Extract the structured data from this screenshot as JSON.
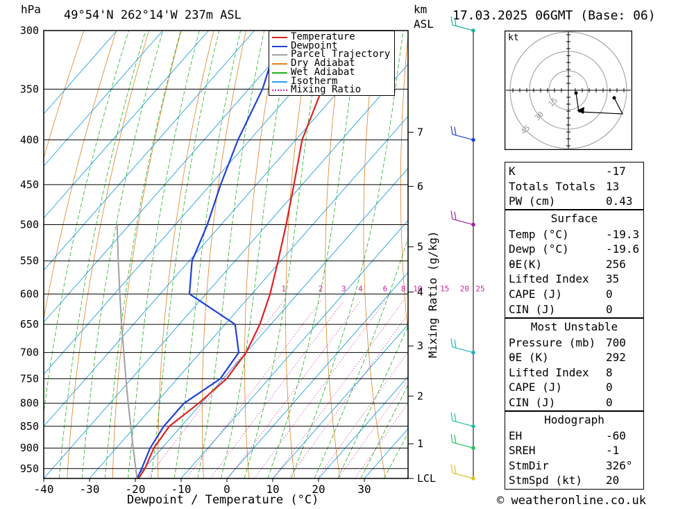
{
  "header": {
    "pressure_unit": "hPa",
    "location": "49°54'N  262°14'W  237m  ASL",
    "km_label": "km",
    "asl_label": "ASL",
    "datetime": "17.03.2025  06GMT  (Base: 06)"
  },
  "footer": {
    "x_axis_title": "Dewpoint / Temperature (°C)",
    "mixing_ratio_title": "Mixing Ratio (g/kg)",
    "copyright": "© weatheronline.co.uk"
  },
  "legend": {
    "items": [
      {
        "label": "Temperature",
        "color": "#e02020",
        "style": "solid"
      },
      {
        "label": "Dewpoint",
        "color": "#1f3fd6",
        "style": "solid"
      },
      {
        "label": "Parcel Trajectory",
        "color": "#a0a0a0",
        "style": "solid"
      },
      {
        "label": "Dry Adiabat",
        "color": "#e08020",
        "style": "solid"
      },
      {
        "label": "Wet Adiabat",
        "color": "#20b020",
        "style": "solid"
      },
      {
        "label": "Isotherm",
        "color": "#1fa0e0",
        "style": "solid"
      },
      {
        "label": "Mixing Ratio",
        "color": "#d020a0",
        "style": "dotted"
      }
    ]
  },
  "hodograph": {
    "unit_label": "kt",
    "ring_labels": [
      "15",
      "30",
      "45"
    ]
  },
  "indices": {
    "basic": [
      {
        "key": "K",
        "value": "-17"
      },
      {
        "key": "Totals Totals",
        "value": "13"
      },
      {
        "key": "PW (cm)",
        "value": "0.43"
      }
    ],
    "surface": {
      "title": "Surface",
      "rows": [
        {
          "key": "Temp (°C)",
          "value": "-19.3"
        },
        {
          "key": "Dewp (°C)",
          "value": "-19.6"
        },
        {
          "key": "θE(K)",
          "value": "256"
        },
        {
          "key": "Lifted Index",
          "value": "35"
        },
        {
          "key": "CAPE (J)",
          "value": "0"
        },
        {
          "key": "CIN (J)",
          "value": "0"
        }
      ]
    },
    "most_unstable": {
      "title": "Most Unstable",
      "rows": [
        {
          "key": "Pressure (mb)",
          "value": "700"
        },
        {
          "key": "θE (K)",
          "value": "292"
        },
        {
          "key": "Lifted Index",
          "value": "8"
        },
        {
          "key": "CAPE (J)",
          "value": "0"
        },
        {
          "key": "CIN (J)",
          "value": "0"
        }
      ]
    },
    "hodograph": {
      "title": "Hodograph",
      "rows": [
        {
          "key": "EH",
          "value": "-60"
        },
        {
          "key": "SREH",
          "value": "-1"
        },
        {
          "key": "StmDir",
          "value": "326°"
        },
        {
          "key": "StmSpd (kt)",
          "value": "20"
        }
      ]
    }
  },
  "chart_data": {
    "type": "line",
    "title": "49°54'N  262°14'W  237m  ASL",
    "xlabel": "Dewpoint / Temperature (°C)",
    "ylabel": "hPa",
    "y_scale": "log",
    "y_reversed": true,
    "xlim": [
      -40,
      40
    ],
    "ylim": [
      975,
      300
    ],
    "pressure_ticks": [
      300,
      350,
      400,
      450,
      500,
      550,
      600,
      650,
      700,
      750,
      800,
      850,
      900,
      950
    ],
    "temperature_ticks": [
      -40,
      -30,
      -20,
      -10,
      0,
      10,
      20,
      30
    ],
    "height_ticks_km": [
      {
        "label": "7",
        "p": 392
      },
      {
        "label": "6",
        "p": 452
      },
      {
        "label": "5",
        "p": 530
      },
      {
        "label": "4",
        "p": 597
      },
      {
        "label": "3",
        "p": 688
      },
      {
        "label": "2",
        "p": 785
      },
      {
        "label": "1",
        "p": 890
      },
      {
        "label": "LCL",
        "p": 975
      }
    ],
    "mixing_ratio_labels": [
      "1",
      "2",
      "3",
      "4",
      "6",
      "8",
      "10",
      "15",
      "20",
      "25"
    ],
    "series": [
      {
        "name": "Temperature",
        "color": "#e02020",
        "points": [
          {
            "p": 975,
            "t": -19.3
          },
          {
            "p": 950,
            "t": -19.8
          },
          {
            "p": 900,
            "t": -21.8
          },
          {
            "p": 850,
            "t": -22.6
          },
          {
            "p": 800,
            "t": -20.6
          },
          {
            "p": 750,
            "t": -19.2
          },
          {
            "p": 700,
            "t": -20.0
          },
          {
            "p": 650,
            "t": -22.4
          },
          {
            "p": 600,
            "t": -26.0
          },
          {
            "p": 550,
            "t": -30.6
          },
          {
            "p": 500,
            "t": -35.8
          },
          {
            "p": 450,
            "t": -41.8
          },
          {
            "p": 400,
            "t": -48.6
          },
          {
            "p": 350,
            "t": -54.0
          },
          {
            "p": 300,
            "t": -58.8
          }
        ]
      },
      {
        "name": "Dewpoint",
        "color": "#1f3fd6",
        "points": [
          {
            "p": 975,
            "t": -19.6
          },
          {
            "p": 950,
            "t": -20.5
          },
          {
            "p": 900,
            "t": -22.6
          },
          {
            "p": 850,
            "t": -23.8
          },
          {
            "p": 800,
            "t": -23.8
          },
          {
            "p": 750,
            "t": -20.6
          },
          {
            "p": 700,
            "t": -21.6
          },
          {
            "p": 650,
            "t": -27.8
          },
          {
            "p": 600,
            "t": -43.6
          },
          {
            "p": 550,
            "t": -49.4
          },
          {
            "p": 500,
            "t": -53.0
          },
          {
            "p": 450,
            "t": -57.8
          },
          {
            "p": 400,
            "t": -62.6
          },
          {
            "p": 350,
            "t": -67.0
          },
          {
            "p": 300,
            "t": -74.2
          }
        ]
      },
      {
        "name": "Parcel Trajectory",
        "color": "#a0a0a0",
        "points": [
          {
            "p": 975,
            "t": -19.6
          },
          {
            "p": 950,
            "t": -21.8
          },
          {
            "p": 900,
            "t": -26.3
          },
          {
            "p": 850,
            "t": -31.0
          },
          {
            "p": 800,
            "t": -36.0
          },
          {
            "p": 750,
            "t": -41.2
          },
          {
            "p": 700,
            "t": -46.7
          },
          {
            "p": 650,
            "t": -52.6
          },
          {
            "p": 600,
            "t": -58.8
          },
          {
            "p": 550,
            "t": -65.5
          },
          {
            "p": 500,
            "t": -72.7
          }
        ]
      }
    ],
    "wind_barbs": [
      {
        "p": 975,
        "color": "#e0c020"
      },
      {
        "p": 900,
        "color": "#20c060"
      },
      {
        "p": 850,
        "color": "#20c0a0"
      },
      {
        "p": 700,
        "color": "#20b0c0"
      },
      {
        "p": 500,
        "color": "#a020a0"
      },
      {
        "p": 400,
        "color": "#1f3fd6"
      },
      {
        "p": 300,
        "color": "#20b0a0"
      }
    ]
  }
}
